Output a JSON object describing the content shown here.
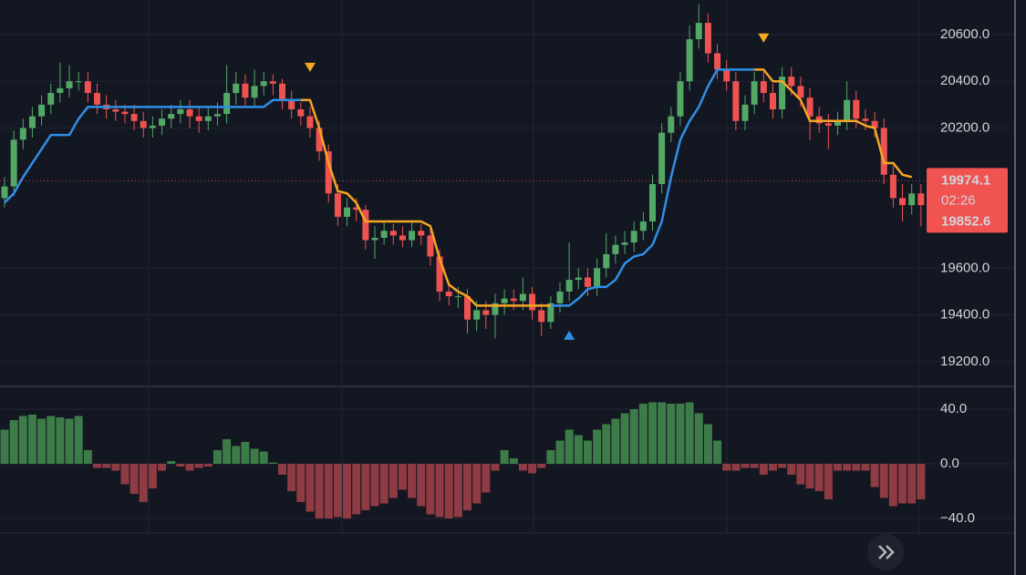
{
  "chart_data": [
    {
      "type": "candlestick",
      "open": [
        19900,
        19950,
        20150,
        20200,
        20250,
        20300,
        20350,
        20370,
        20400,
        20400,
        20350,
        20300,
        20280,
        20270,
        20260,
        20230,
        20200,
        20210,
        20240,
        20260,
        20280,
        20250,
        20230,
        20250,
        20260,
        20350,
        20390,
        20330,
        20380,
        20400,
        20390,
        20320,
        20280,
        20250,
        20200,
        20100,
        19920,
        19820,
        19860,
        19850,
        19720,
        19730,
        19760,
        19740,
        19720,
        19760,
        19740,
        19650,
        19500,
        19480,
        19480,
        19380,
        19420,
        19400,
        19450,
        19470,
        19460,
        19490,
        19420,
        19370,
        19450,
        19500,
        19550,
        19560,
        19520,
        19600,
        19660,
        19700,
        19710,
        19760,
        19800,
        19960,
        20180,
        20250,
        20400,
        20580,
        20650,
        20520,
        20450,
        20400,
        20230,
        20300,
        20400,
        20350,
        20280,
        20420,
        20380,
        20330,
        20250,
        20220,
        20210,
        20230,
        20320,
        20240,
        20230,
        20200,
        20000,
        19900,
        19870,
        19920
      ],
      "high": [
        19990,
        20190,
        20240,
        20290,
        20340,
        20390,
        20480,
        20470,
        20440,
        20440,
        20390,
        20340,
        20320,
        20300,
        20300,
        20270,
        20250,
        20280,
        20300,
        20320,
        20320,
        20290,
        20290,
        20310,
        20470,
        20440,
        20430,
        20450,
        20440,
        20430,
        20410,
        20360,
        20310,
        20290,
        20230,
        20130,
        19960,
        19900,
        19900,
        19870,
        19780,
        19800,
        19790,
        19780,
        19800,
        19790,
        19770,
        19680,
        19530,
        19520,
        19510,
        19460,
        19460,
        19490,
        19510,
        19510,
        19560,
        19520,
        19450,
        19480,
        19540,
        19710,
        19600,
        19600,
        19640,
        19750,
        19740,
        19760,
        19800,
        19840,
        20000,
        20220,
        20290,
        20440,
        20640,
        20730,
        20690,
        20560,
        20490,
        20440,
        20340,
        20440,
        20440,
        20390,
        20460,
        20460,
        20420,
        20370,
        20290,
        20260,
        20270,
        20400,
        20360,
        20280,
        20270,
        20240,
        20040,
        19960,
        19960,
        19960
      ],
      "low": [
        19860,
        19910,
        20110,
        20160,
        20210,
        20260,
        20310,
        20330,
        20360,
        20310,
        20260,
        20240,
        20230,
        20220,
        20190,
        20160,
        20160,
        20170,
        20200,
        20220,
        20200,
        20180,
        20190,
        20210,
        20220,
        20300,
        20290,
        20290,
        20340,
        20340,
        20280,
        20240,
        20210,
        20160,
        20060,
        19880,
        19780,
        19780,
        19800,
        19680,
        19640,
        19700,
        19700,
        19690,
        19690,
        19700,
        19610,
        19460,
        19440,
        19430,
        19320,
        19330,
        19340,
        19300,
        19400,
        19420,
        19420,
        19380,
        19310,
        19340,
        19410,
        19460,
        19510,
        19480,
        19480,
        19560,
        19620,
        19660,
        19670,
        19720,
        19760,
        19920,
        20140,
        20210,
        20360,
        20540,
        20480,
        20410,
        20360,
        20190,
        20190,
        20260,
        20310,
        20240,
        20240,
        20340,
        20290,
        20150,
        20180,
        20110,
        20170,
        20190,
        20200,
        20190,
        20160,
        19960,
        19860,
        19800,
        19830,
        19780
      ],
      "close": [
        19950,
        20150,
        20200,
        20250,
        20300,
        20350,
        20370,
        20400,
        20400,
        20350,
        20300,
        20280,
        20270,
        20260,
        20230,
        20200,
        20210,
        20240,
        20260,
        20280,
        20250,
        20230,
        20250,
        20260,
        20350,
        20390,
        20330,
        20380,
        20400,
        20390,
        20320,
        20280,
        20250,
        20200,
        20100,
        19920,
        19820,
        19860,
        19850,
        19720,
        19730,
        19760,
        19740,
        19720,
        19760,
        19740,
        19650,
        19500,
        19480,
        19480,
        19380,
        19420,
        19400,
        19450,
        19470,
        19460,
        19490,
        19420,
        19370,
        19450,
        19500,
        19550,
        19560,
        19520,
        19600,
        19660,
        19700,
        19710,
        19760,
        19800,
        19960,
        20180,
        20250,
        20400,
        20580,
        20650,
        20520,
        20450,
        20400,
        20230,
        20300,
        20400,
        20350,
        20280,
        20420,
        20380,
        20330,
        20250,
        20220,
        20210,
        20230,
        20320,
        20240,
        20230,
        20200,
        20000,
        19900,
        19870,
        19920,
        19870
      ],
      "up_color": "#53a866",
      "down_color": "#ef5350",
      "series": [
        {
          "color": "#2f8fe6",
          "values": [
            19880,
            19920,
            19990,
            20050,
            20110,
            20170,
            20170,
            20170,
            20240,
            20290,
            20290,
            20290,
            20290,
            20290,
            20290,
            20290,
            20290,
            20290,
            20290,
            20290,
            20290,
            20290,
            20290,
            20290,
            20290,
            20290,
            20290,
            20290,
            20290,
            20320,
            20320,
            20320,
            20320,
            null,
            null,
            null,
            null,
            null,
            null,
            null,
            null,
            null,
            null,
            null,
            null,
            null,
            null,
            null,
            null,
            null,
            null,
            null,
            null,
            null,
            null,
            null,
            null,
            null,
            null,
            19440,
            19440,
            19440,
            19470,
            19510,
            19520,
            19520,
            19550,
            19620,
            19650,
            19660,
            19700,
            19800,
            19990,
            20150,
            20230,
            20290,
            20380,
            20450,
            20450,
            20450,
            20450,
            20450,
            null,
            null,
            null,
            null,
            null,
            null,
            null,
            null,
            null,
            null,
            null,
            null,
            null,
            null,
            null,
            null,
            null,
            null
          ]
        },
        {
          "color": "#f5a623",
          "values": [
            null,
            null,
            null,
            null,
            null,
            null,
            null,
            null,
            null,
            null,
            null,
            null,
            null,
            null,
            null,
            null,
            null,
            null,
            null,
            null,
            null,
            null,
            null,
            null,
            null,
            null,
            null,
            null,
            null,
            null,
            null,
            null,
            20320,
            20320,
            20200,
            20050,
            19930,
            19920,
            19880,
            19800,
            19800,
            19800,
            19800,
            19800,
            19800,
            19800,
            19780,
            19640,
            19530,
            19500,
            19480,
            19440,
            19440,
            19440,
            19440,
            19440,
            19440,
            19440,
            19440,
            19440,
            null,
            null,
            null,
            null,
            null,
            null,
            null,
            null,
            null,
            null,
            null,
            null,
            null,
            null,
            null,
            null,
            null,
            null,
            null,
            null,
            null,
            20450,
            20450,
            20400,
            20400,
            20360,
            20320,
            20230,
            20230,
            20230,
            20230,
            20230,
            20230,
            20210,
            20200,
            20050,
            20050,
            20000,
            19990
          ]
        }
      ],
      "signals": [
        {
          "index": 33,
          "side": "down",
          "price": 20460,
          "color": "#f5a623"
        },
        {
          "index": 82,
          "side": "down",
          "price": 20585,
          "color": "#f5a623"
        },
        {
          "index": 61,
          "side": "up",
          "price": 19313,
          "color": "#2f8fe6"
        }
      ],
      "ylim": [
        19098,
        20748
      ],
      "yticks": [
        {
          "value": 19200,
          "label": "19200.0"
        },
        {
          "value": 19400,
          "label": "19400.0"
        },
        {
          "value": 19600,
          "label": "19600.0"
        },
        {
          "value": 20200,
          "label": "20200.0"
        },
        {
          "value": 20400,
          "label": "20400.0"
        },
        {
          "value": 20600,
          "label": "20600.0"
        }
      ],
      "grid": true,
      "last_price": 19974.1,
      "countdown": "02:26",
      "secondary_price": 19852.6,
      "price_box_color": "#f05350"
    },
    {
      "type": "histogram",
      "values": [
        25,
        32,
        35,
        36,
        33,
        35,
        34,
        33,
        35,
        10,
        -3,
        -3,
        -5,
        -15,
        -22,
        -28,
        -18,
        -5,
        2,
        -2,
        -5,
        -3,
        -2,
        10,
        18,
        13,
        16,
        11,
        9,
        1,
        -8,
        -20,
        -28,
        -35,
        -40,
        -40,
        -39,
        -40,
        -37,
        -34,
        -31,
        -29,
        -25,
        -19,
        -25,
        -31,
        -37,
        -39,
        -40,
        -39,
        -34,
        -29,
        -21,
        -5,
        10,
        4,
        -5,
        -7,
        -3,
        10,
        17,
        25,
        21,
        17,
        25,
        29,
        33,
        37,
        40,
        44,
        45,
        45,
        44,
        44,
        45,
        37,
        29,
        17,
        -5,
        -5,
        -3,
        -3,
        -8,
        -5,
        -3,
        -8,
        -15,
        -18,
        -20,
        -26,
        -5,
        -5,
        -5,
        -5,
        -17,
        -25,
        -31,
        -29,
        -29,
        -26
      ],
      "pos_color": "#3d7c48",
      "neg_color": "#8f3b43",
      "ylim": [
        -50.7,
        56
      ],
      "yticks": [
        {
          "value": 40,
          "label": "40.0"
        },
        {
          "value": 0,
          "label": "0.0"
        },
        {
          "value": -40,
          "label": "−40.0"
        }
      ],
      "grid": true
    }
  ]
}
